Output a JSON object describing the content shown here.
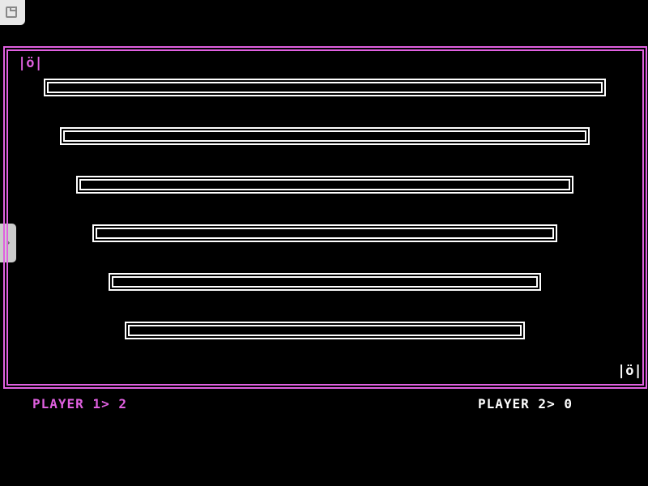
{
  "colors": {
    "player1": "#e060e0",
    "player2": "#ffffff",
    "frame": "#e060e0",
    "bars": "#ffffff"
  },
  "players": [
    {
      "label": "PLAYER 1>",
      "score": "2",
      "ship": "|ö|"
    },
    {
      "label": "PLAYER 2>",
      "score": "0",
      "ship": "|ö|"
    }
  ],
  "bars_count": 6
}
